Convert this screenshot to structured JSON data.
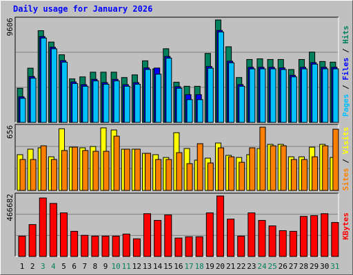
{
  "chart_data": [
    {
      "type": "bar",
      "title": "Daily usage for January 2026",
      "legend_separator": " / ",
      "ylim": [
        0,
        9606
      ],
      "series": [
        {
          "name": "Hits",
          "color": "#00805c",
          "values": [
            3202,
            5085,
            8601,
            7534,
            6341,
            4081,
            4269,
            4709,
            4709,
            4709,
            4206,
            4457,
            5776,
            5022,
            6906,
            3767,
            3390,
            3390,
            6466,
            9606,
            7094,
            4206,
            5901,
            5964,
            5901,
            5901,
            4960,
            5901,
            6592,
            5713,
            5650
          ]
        },
        {
          "name": "Files",
          "color": "#0000ff",
          "values": [
            2400,
            4300,
            8050,
            7050,
            5800,
            3790,
            3540,
            4040,
            3730,
            4040,
            3540,
            3730,
            5110,
            5100,
            6180,
            3350,
            2600,
            2600,
            5240,
            8630,
            5740,
            3540,
            5170,
            5170,
            5170,
            5110,
            4420,
            5170,
            5610,
            5170,
            5170
          ]
        },
        {
          "name": "Pages",
          "color": "#00c0ff",
          "values": [
            2260,
            4144,
            7911,
            6906,
            5650,
            3641,
            3390,
            3892,
            3578,
            3892,
            3390,
            3578,
            4960,
            4520,
            6027,
            3202,
            2135,
            2135,
            5085,
            8476,
            5588,
            3390,
            5022,
            5022,
            5022,
            4960,
            4269,
            5022,
            5462,
            5022,
            5022
          ]
        }
      ]
    },
    {
      "type": "bar",
      "legend_separator": " / ",
      "ylim": [
        0,
        656
      ],
      "series": [
        {
          "name": "Visits",
          "color": "#ffff00",
          "values": [
            371,
            428,
            442,
            349,
            640,
            449,
            442,
            456,
            649,
            627,
            428,
            428,
            385,
            371,
            342,
            599,
            435,
            314,
            335,
            492,
            364,
            342,
            371,
            435,
            478,
            478,
            349,
            349,
            449,
            478,
            342
          ]
        },
        {
          "name": "Sites",
          "color": "#ff8000",
          "values": [
            321,
            321,
            463,
            321,
            414,
            449,
            414,
            406,
            406,
            563,
            428,
            428,
            385,
            321,
            321,
            392,
            278,
            485,
            285,
            442,
            349,
            292,
            442,
            656,
            463,
            463,
            321,
            321,
            349,
            463,
            635
          ]
        }
      ]
    },
    {
      "type": "bar",
      "ylim": [
        0,
        466682
      ],
      "categories": [
        "1",
        "2",
        "3",
        "4",
        "5",
        "6",
        "7",
        "8",
        "9",
        "10",
        "11",
        "12",
        "13",
        "14",
        "15",
        "16",
        "17",
        "18",
        "19",
        "20",
        "21",
        "22",
        "23",
        "24",
        "25",
        "26",
        "27",
        "28",
        "29",
        "30",
        "31"
      ],
      "category_colors": [
        "#000000",
        "#000000",
        "#00805c",
        "#00805c",
        "#000000",
        "#000000",
        "#000000",
        "#000000",
        "#000000",
        "#00805c",
        "#00805c",
        "#000000",
        "#000000",
        "#000000",
        "#000000",
        "#000000",
        "#00805c",
        "#00805c",
        "#000000",
        "#000000",
        "#000000",
        "#000000",
        "#000000",
        "#00805c",
        "#00805c",
        "#000000",
        "#000000",
        "#000000",
        "#000000",
        "#000000",
        "#00805c"
      ],
      "series": [
        {
          "name": "KBytes",
          "color": "#ff0000",
          "values": [
            157000,
            246000,
            451000,
            409000,
            336000,
            194000,
            163000,
            157000,
            157000,
            157000,
            173000,
            136000,
            330000,
            278000,
            320000,
            142000,
            152000,
            152000,
            336000,
            466682,
            288000,
            157000,
            336000,
            278000,
            236000,
            199000,
            194000,
            309000,
            315000,
            330000,
            262000
          ]
        }
      ]
    }
  ]
}
